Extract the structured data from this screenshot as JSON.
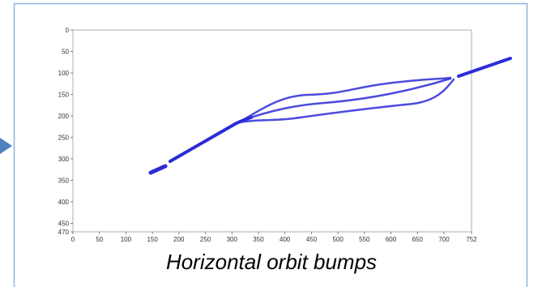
{
  "chart_data": {
    "type": "image",
    "title": "Horizontal orbit bumps",
    "xlim": [
      0,
      752
    ],
    "ylim": [
      470,
      0
    ],
    "xticks": [
      0,
      50,
      100,
      150,
      200,
      250,
      300,
      350,
      400,
      450,
      500,
      550,
      600,
      650,
      700,
      752
    ],
    "yticks": [
      0,
      50,
      100,
      150,
      200,
      250,
      300,
      350,
      400,
      450,
      470
    ]
  }
}
